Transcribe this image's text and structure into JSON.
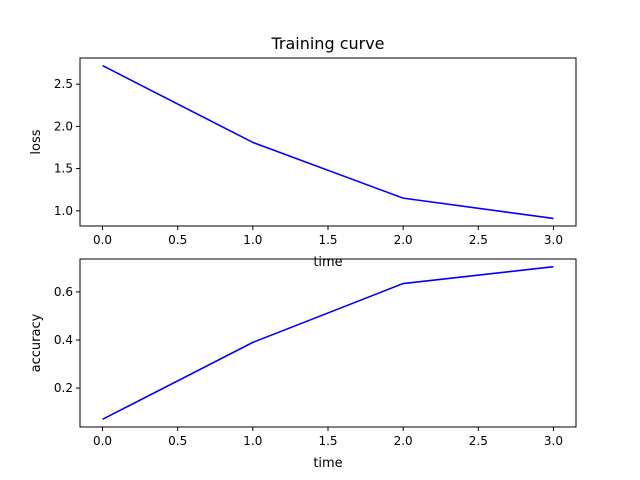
{
  "chart_data": [
    {
      "type": "line",
      "title": "Training curve",
      "xlabel": "time",
      "ylabel": "loss",
      "x": [
        0,
        1,
        2,
        3
      ],
      "series": [
        {
          "values": [
            2.72,
            1.81,
            1.15,
            0.91
          ],
          "color": "#0000ff"
        }
      ],
      "xlim": [
        -0.15,
        3.15
      ],
      "ylim": [
        0.82,
        2.81
      ],
      "xticks": [
        0.0,
        0.5,
        1.0,
        1.5,
        2.0,
        2.5,
        3.0
      ],
      "xtick_labels": [
        "0.0",
        "0.5",
        "1.0",
        "1.5",
        "2.0",
        "2.5",
        "3.0"
      ],
      "yticks": [
        1.0,
        1.5,
        2.0,
        2.5
      ],
      "ytick_labels": [
        "1.0",
        "1.5",
        "2.0",
        "2.5"
      ],
      "grid": false
    },
    {
      "type": "line",
      "title": "",
      "xlabel": "time",
      "ylabel": "accuracy",
      "x": [
        0,
        1,
        2,
        3
      ],
      "series": [
        {
          "values": [
            0.07,
            0.39,
            0.635,
            0.705
          ],
          "color": "#0000ff"
        }
      ],
      "xlim": [
        -0.15,
        3.15
      ],
      "ylim": [
        0.038,
        0.737
      ],
      "xticks": [
        0.0,
        0.5,
        1.0,
        1.5,
        2.0,
        2.5,
        3.0
      ],
      "xtick_labels": [
        "0.0",
        "0.5",
        "1.0",
        "1.5",
        "2.0",
        "2.5",
        "3.0"
      ],
      "yticks": [
        0.2,
        0.4,
        0.6
      ],
      "ytick_labels": [
        "0.2",
        "0.4",
        "0.6"
      ],
      "grid": false
    }
  ]
}
